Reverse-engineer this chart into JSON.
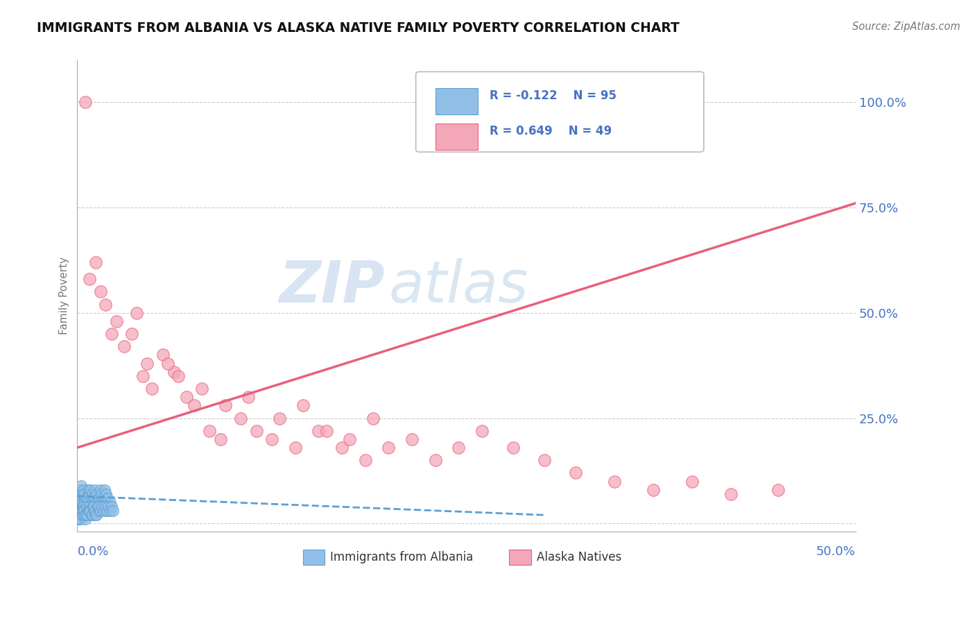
{
  "title": "IMMIGRANTS FROM ALBANIA VS ALASKA NATIVE FAMILY POVERTY CORRELATION CHART",
  "source": "Source: ZipAtlas.com",
  "ylabel": "Family Poverty",
  "yticks": [
    0.0,
    0.25,
    0.5,
    0.75,
    1.0
  ],
  "ytick_labels": [
    "",
    "25.0%",
    "50.0%",
    "75.0%",
    "100.0%"
  ],
  "xlim": [
    0.0,
    0.5
  ],
  "ylim": [
    -0.02,
    1.1
  ],
  "blue_color": "#92bfe8",
  "blue_edge_color": "#5a9fd4",
  "pink_color": "#f4a7b9",
  "pink_edge_color": "#e8607a",
  "blue_line_color": "#5a9fd4",
  "pink_line_color": "#e8607a",
  "background_color": "#ffffff",
  "grid_color": "#cccccc",
  "tick_color": "#4472C4",
  "blue_scatter_x": [
    0.0005,
    0.001,
    0.0008,
    0.0015,
    0.002,
    0.0012,
    0.0018,
    0.0025,
    0.003,
    0.0022,
    0.0028,
    0.0035,
    0.004,
    0.0032,
    0.0038,
    0.0045,
    0.005,
    0.0042,
    0.0048,
    0.006,
    0.0055,
    0.007,
    0.0065,
    0.008,
    0.0075,
    0.009,
    0.0085,
    0.01,
    0.0095,
    0.011,
    0.0105,
    0.012,
    0.0115,
    0.013,
    0.0125,
    0.014,
    0.0135,
    0.015,
    0.0145,
    0.016,
    0.0155,
    0.017,
    0.0165,
    0.018,
    0.0175,
    0.019,
    0.0185,
    0.02,
    0.0195,
    0.021,
    0.0005,
    0.001,
    0.0008,
    0.0015,
    0.002,
    0.0012,
    0.0018,
    0.0025,
    0.003,
    0.0022,
    0.0028,
    0.0035,
    0.004,
    0.0032,
    0.0038,
    0.0045,
    0.005,
    0.0042,
    0.0048,
    0.006,
    0.0055,
    0.007,
    0.0065,
    0.008,
    0.0075,
    0.009,
    0.0085,
    0.01,
    0.0095,
    0.011,
    0.0105,
    0.012,
    0.0115,
    0.013,
    0.0125,
    0.014,
    0.0135,
    0.015,
    0.016,
    0.017,
    0.018,
    0.019,
    0.02,
    0.021,
    0.022,
    0.023
  ],
  "blue_scatter_y": [
    0.02,
    0.05,
    0.03,
    0.08,
    0.04,
    0.06,
    0.07,
    0.09,
    0.05,
    0.03,
    0.06,
    0.04,
    0.07,
    0.05,
    0.08,
    0.06,
    0.04,
    0.07,
    0.05,
    0.06,
    0.03,
    0.08,
    0.05,
    0.07,
    0.04,
    0.06,
    0.08,
    0.05,
    0.07,
    0.04,
    0.06,
    0.05,
    0.08,
    0.04,
    0.07,
    0.06,
    0.05,
    0.08,
    0.04,
    0.06,
    0.07,
    0.05,
    0.04,
    0.06,
    0.08,
    0.05,
    0.07,
    0.04,
    0.06,
    0.05,
    0.01,
    0.02,
    0.01,
    0.03,
    0.02,
    0.01,
    0.02,
    0.03,
    0.02,
    0.01,
    0.03,
    0.02,
    0.04,
    0.02,
    0.03,
    0.02,
    0.01,
    0.03,
    0.02,
    0.04,
    0.02,
    0.03,
    0.02,
    0.04,
    0.03,
    0.02,
    0.03,
    0.04,
    0.02,
    0.03,
    0.04,
    0.02,
    0.03,
    0.04,
    0.02,
    0.03,
    0.04,
    0.03,
    0.04,
    0.03,
    0.04,
    0.03,
    0.04,
    0.03,
    0.04,
    0.03
  ],
  "pink_scatter_x": [
    0.005,
    0.008,
    0.012,
    0.018,
    0.025,
    0.015,
    0.022,
    0.03,
    0.038,
    0.045,
    0.035,
    0.042,
    0.055,
    0.048,
    0.062,
    0.07,
    0.058,
    0.075,
    0.085,
    0.065,
    0.092,
    0.08,
    0.105,
    0.095,
    0.115,
    0.125,
    0.11,
    0.14,
    0.13,
    0.155,
    0.145,
    0.17,
    0.16,
    0.185,
    0.175,
    0.2,
    0.19,
    0.215,
    0.23,
    0.245,
    0.26,
    0.28,
    0.3,
    0.32,
    0.345,
    0.37,
    0.395,
    0.42,
    0.45
  ],
  "pink_scatter_y": [
    1.0,
    0.58,
    0.62,
    0.52,
    0.48,
    0.55,
    0.45,
    0.42,
    0.5,
    0.38,
    0.45,
    0.35,
    0.4,
    0.32,
    0.36,
    0.3,
    0.38,
    0.28,
    0.22,
    0.35,
    0.2,
    0.32,
    0.25,
    0.28,
    0.22,
    0.2,
    0.3,
    0.18,
    0.25,
    0.22,
    0.28,
    0.18,
    0.22,
    0.15,
    0.2,
    0.18,
    0.25,
    0.2,
    0.15,
    0.18,
    0.22,
    0.18,
    0.15,
    0.12,
    0.1,
    0.08,
    0.1,
    0.07,
    0.08
  ],
  "blue_trend_x": [
    0.0,
    0.3
  ],
  "blue_trend_y": [
    0.065,
    0.02
  ],
  "pink_trend_x": [
    0.0,
    0.5
  ],
  "pink_trend_y": [
    0.18,
    0.76
  ]
}
